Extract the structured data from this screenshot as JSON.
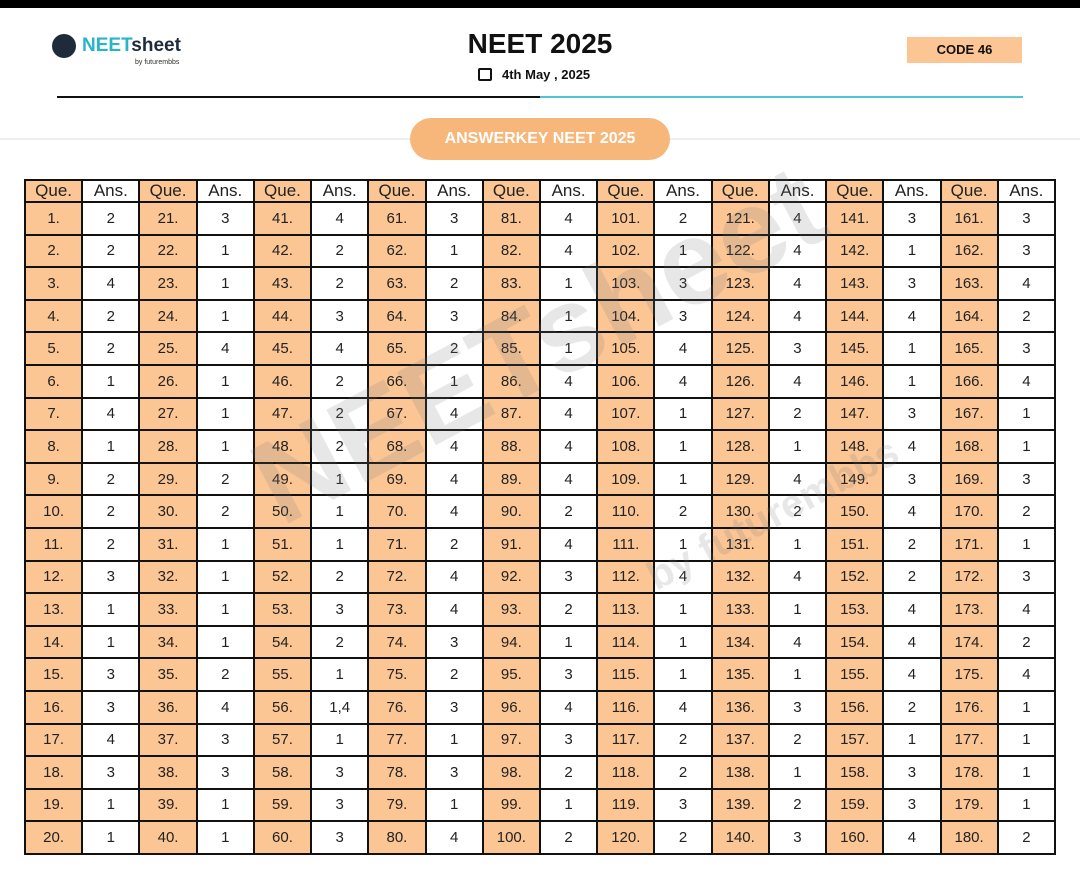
{
  "header": {
    "brand_a": "NEET",
    "brand_b": "sheet",
    "byline": "by futurembbs",
    "title": "NEET 2025",
    "date": "4th May , 2025",
    "code": "CODE 46",
    "banner": "ANSWERKEY NEET 2025"
  },
  "watermark": {
    "brand": "NEETsheet",
    "byline": "by futurembbs"
  },
  "table": {
    "header": [
      "Que.",
      "Ans.",
      "Que.",
      "Ans.",
      "Que.",
      "Ans.",
      "Que.",
      "Ans.",
      "Que.",
      "Ans.",
      "Que.",
      "Ans.",
      "Que.",
      "Ans.",
      "Que.",
      "Ans.",
      "Que.",
      "Ans."
    ],
    "rows": [
      [
        "1.",
        2,
        "21.",
        3,
        "41.",
        4,
        "61.",
        3,
        "81.",
        4,
        "101.",
        2,
        "121.",
        4,
        "141.",
        3,
        "161.",
        3
      ],
      [
        "2.",
        2,
        "22.",
        1,
        "42.",
        2,
        "62.",
        1,
        "82.",
        4,
        "102.",
        1,
        "122.",
        4,
        "142.",
        1,
        "162.",
        3
      ],
      [
        "3.",
        4,
        "23.",
        1,
        "43.",
        2,
        "63.",
        2,
        "83.",
        1,
        "103.",
        3,
        "123.",
        4,
        "143.",
        3,
        "163.",
        4
      ],
      [
        "4.",
        2,
        "24.",
        1,
        "44.",
        3,
        "64.",
        3,
        "84.",
        1,
        "104.",
        3,
        "124.",
        4,
        "144.",
        4,
        "164.",
        2
      ],
      [
        "5.",
        2,
        "25.",
        4,
        "45.",
        4,
        "65.",
        2,
        "85.",
        1,
        "105.",
        4,
        "125.",
        3,
        "145.",
        1,
        "165.",
        3
      ],
      [
        "6.",
        1,
        "26.",
        1,
        "46.",
        2,
        "66.",
        1,
        "86.",
        4,
        "106.",
        4,
        "126.",
        4,
        "146.",
        1,
        "166.",
        4
      ],
      [
        "7.",
        4,
        "27.",
        1,
        "47.",
        2,
        "67.",
        4,
        "87.",
        4,
        "107.",
        1,
        "127.",
        2,
        "147.",
        3,
        "167.",
        1
      ],
      [
        "8.",
        1,
        "28.",
        1,
        "48.",
        2,
        "68.",
        4,
        "88.",
        4,
        "108.",
        1,
        "128.",
        1,
        "148.",
        4,
        "168.",
        1
      ],
      [
        "9.",
        2,
        "29.",
        2,
        "49.",
        1,
        "69.",
        4,
        "89.",
        4,
        "109.",
        1,
        "129.",
        4,
        "149.",
        3,
        "169.",
        3
      ],
      [
        "10.",
        2,
        "30.",
        2,
        "50.",
        1,
        "70.",
        4,
        "90.",
        2,
        "110.",
        2,
        "130.",
        2,
        "150.",
        4,
        "170.",
        2
      ],
      [
        "11.",
        2,
        "31.",
        1,
        "51.",
        1,
        "71.",
        2,
        "91.",
        4,
        "111.",
        1,
        "131.",
        1,
        "151.",
        2,
        "171.",
        1
      ],
      [
        "12.",
        3,
        "32.",
        1,
        "52.",
        2,
        "72.",
        4,
        "92.",
        3,
        "112.",
        4,
        "132.",
        4,
        "152.",
        2,
        "172.",
        3
      ],
      [
        "13.",
        1,
        "33.",
        1,
        "53.",
        3,
        "73.",
        4,
        "93.",
        2,
        "113.",
        1,
        "133.",
        1,
        "153.",
        4,
        "173.",
        4
      ],
      [
        "14.",
        1,
        "34.",
        1,
        "54.",
        2,
        "74.",
        3,
        "94.",
        1,
        "114.",
        1,
        "134.",
        4,
        "154.",
        4,
        "174.",
        2
      ],
      [
        "15.",
        3,
        "35.",
        2,
        "55.",
        1,
        "75.",
        2,
        "95.",
        3,
        "115.",
        1,
        "135.",
        1,
        "155.",
        4,
        "175.",
        4
      ],
      [
        "16.",
        3,
        "36.",
        4,
        "56.",
        "1,4",
        "76.",
        3,
        "96.",
        4,
        "116.",
        4,
        "136.",
        3,
        "156.",
        2,
        "176.",
        1
      ],
      [
        "17.",
        4,
        "37.",
        3,
        "57.",
        1,
        "77.",
        1,
        "97.",
        3,
        "117.",
        2,
        "137.",
        2,
        "157.",
        1,
        "177.",
        1
      ],
      [
        "18.",
        3,
        "38.",
        3,
        "58.",
        3,
        "78.",
        3,
        "98.",
        2,
        "118.",
        2,
        "138.",
        1,
        "158.",
        3,
        "178.",
        1
      ],
      [
        "19.",
        1,
        "39.",
        1,
        "59.",
        3,
        "79.",
        1,
        "99.",
        1,
        "119.",
        3,
        "139.",
        2,
        "159.",
        3,
        "179.",
        1
      ],
      [
        "20.",
        1,
        "40.",
        1,
        "60.",
        3,
        "80.",
        4,
        "100.",
        2,
        "120.",
        2,
        "140.",
        3,
        "160.",
        4,
        "180.",
        2
      ]
    ]
  }
}
